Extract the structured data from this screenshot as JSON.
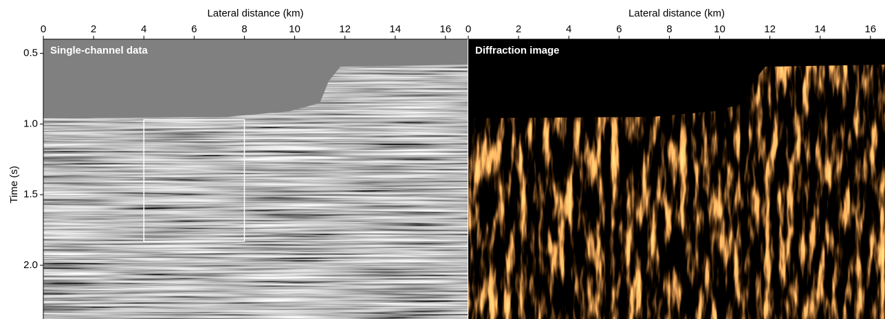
{
  "chart_data": [
    {
      "type": "image",
      "title": "Single-channel data",
      "xlabel": "Lateral distance (km)",
      "ylabel": "Time (s)",
      "xlim": [
        0,
        16.88
      ],
      "xticks": [
        0,
        2,
        4,
        6,
        8,
        10,
        12,
        14,
        16
      ],
      "ylim": [
        0.4,
        2.38
      ],
      "yticks": [
        0.5,
        {
          "value": 1,
          "label": "1.0"
        },
        1.5,
        {
          "value": 2,
          "label": "2.0"
        }
      ],
      "box": {
        "x": [
          4,
          8
        ],
        "y": [
          0.97,
          1.83
        ],
        "color": "#ffffff"
      }
    },
    {
      "type": "image",
      "title": "Diffraction image",
      "xlabel": "Lateral distance (km)",
      "xlim": [
        0,
        16.58
      ],
      "xticks": [
        0,
        2,
        4,
        6,
        8,
        10,
        12,
        14,
        16
      ]
    }
  ]
}
